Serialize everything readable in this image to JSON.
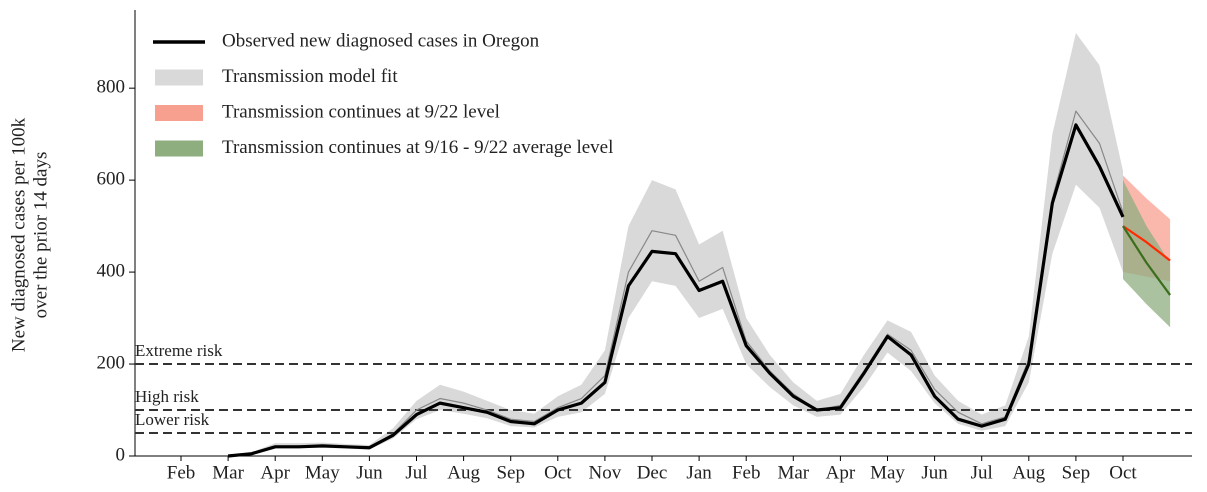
{
  "chart_data": {
    "type": "line",
    "y_label": [
      "New diagnosed cases per 100k",
      "over the prior 14 days"
    ],
    "categories": [
      "Feb",
      null,
      "Mar",
      null,
      "Apr",
      null,
      "May",
      null,
      "Jun",
      null,
      "Jul",
      null,
      "Aug",
      null,
      "Sep",
      null,
      "Oct",
      null,
      "Nov",
      null,
      "Dec",
      null,
      "Jan",
      null,
      "Feb",
      null,
      "Mar",
      null,
      "Apr",
      null,
      "May",
      null,
      "Jun",
      null,
      "Jul",
      null,
      "Aug",
      null,
      "Sep",
      null,
      "Oct",
      null,
      null
    ],
    "ylim": [
      0,
      970
    ],
    "yticks": [
      0,
      200,
      400,
      600,
      800
    ],
    "series": [
      {
        "name": "Observed new diagnosed cases in Oregon",
        "color": "#000000",
        "values": [
          null,
          null,
          0,
          5,
          20,
          20,
          22,
          20,
          18,
          45,
          90,
          115,
          105,
          95,
          75,
          70,
          100,
          115,
          160,
          370,
          445,
          440,
          360,
          380,
          240,
          180,
          130,
          100,
          105,
          180,
          260,
          220,
          130,
          80,
          65,
          80,
          200,
          550,
          720,
          630,
          520,
          null,
          null
        ]
      },
      {
        "name": "Transmission model fit",
        "color": "#d9d9d9",
        "values": [
          null,
          null,
          0,
          5,
          22,
          22,
          23,
          21,
          19,
          48,
          100,
          125,
          115,
          100,
          80,
          75,
          105,
          125,
          175,
          400,
          490,
          480,
          380,
          410,
          250,
          185,
          135,
          100,
          110,
          185,
          265,
          230,
          145,
          95,
          70,
          85,
          210,
          560,
          750,
          680,
          530,
          null,
          null
        ],
        "lower": [
          null,
          null,
          0,
          3,
          17,
          17,
          18,
          16,
          14,
          38,
          80,
          100,
          92,
          82,
          65,
          62,
          85,
          95,
          135,
          300,
          380,
          370,
          300,
          320,
          200,
          150,
          110,
          85,
          90,
          150,
          225,
          185,
          115,
          70,
          55,
          65,
          160,
          440,
          590,
          540,
          400,
          null,
          null
        ],
        "upper": [
          null,
          null,
          2,
          8,
          28,
          28,
          29,
          26,
          24,
          60,
          120,
          155,
          140,
          120,
          100,
          92,
          130,
          155,
          230,
          500,
          600,
          580,
          460,
          490,
          300,
          220,
          160,
          120,
          135,
          220,
          295,
          270,
          175,
          120,
          90,
          110,
          260,
          700,
          920,
          850,
          620,
          null,
          null
        ]
      },
      {
        "name": "Transmission continues at 9/22 level",
        "color": "#f8a090",
        "line_color": "#ff2a00",
        "values": [
          null,
          null,
          null,
          null,
          null,
          null,
          null,
          null,
          null,
          null,
          null,
          null,
          null,
          null,
          null,
          null,
          null,
          null,
          null,
          null,
          null,
          null,
          null,
          null,
          null,
          null,
          null,
          null,
          null,
          null,
          null,
          null,
          null,
          null,
          null,
          null,
          null,
          null,
          null,
          null,
          500,
          465,
          425
        ],
        "lower": [
          null,
          null,
          null,
          null,
          null,
          null,
          null,
          null,
          null,
          null,
          null,
          null,
          null,
          null,
          null,
          null,
          null,
          null,
          null,
          null,
          null,
          null,
          null,
          null,
          null,
          null,
          null,
          null,
          null,
          null,
          null,
          null,
          null,
          null,
          null,
          null,
          null,
          null,
          null,
          null,
          400,
          390,
          380
        ],
        "upper": [
          null,
          null,
          null,
          null,
          null,
          null,
          null,
          null,
          null,
          null,
          null,
          null,
          null,
          null,
          null,
          null,
          null,
          null,
          null,
          null,
          null,
          null,
          null,
          null,
          null,
          null,
          null,
          null,
          null,
          null,
          null,
          null,
          null,
          null,
          null,
          null,
          null,
          null,
          null,
          null,
          610,
          560,
          515
        ]
      },
      {
        "name": "Transmission continues at 9/16 - 9/22 average level",
        "color": "#8fae80",
        "line_color": "#3c6e1e",
        "values": [
          null,
          null,
          null,
          null,
          null,
          null,
          null,
          null,
          null,
          null,
          null,
          null,
          null,
          null,
          null,
          null,
          null,
          null,
          null,
          null,
          null,
          null,
          null,
          null,
          null,
          null,
          null,
          null,
          null,
          null,
          null,
          null,
          null,
          null,
          null,
          null,
          null,
          null,
          null,
          null,
          500,
          420,
          350
        ],
        "lower": [
          null,
          null,
          null,
          null,
          null,
          null,
          null,
          null,
          null,
          null,
          null,
          null,
          null,
          null,
          null,
          null,
          null,
          null,
          null,
          null,
          null,
          null,
          null,
          null,
          null,
          null,
          null,
          null,
          null,
          null,
          null,
          null,
          null,
          null,
          null,
          null,
          null,
          null,
          null,
          null,
          385,
          330,
          280
        ],
        "upper": [
          null,
          null,
          null,
          null,
          null,
          null,
          null,
          null,
          null,
          null,
          null,
          null,
          null,
          null,
          null,
          null,
          null,
          null,
          null,
          null,
          null,
          null,
          null,
          null,
          null,
          null,
          null,
          null,
          null,
          null,
          null,
          null,
          null,
          null,
          null,
          null,
          null,
          null,
          null,
          null,
          600,
          500,
          420
        ]
      }
    ],
    "thresholds": [
      {
        "label": "Extreme risk",
        "value": 200
      },
      {
        "label": "High risk",
        "value": 100
      },
      {
        "label": "Lower risk",
        "value": 50
      }
    ]
  }
}
